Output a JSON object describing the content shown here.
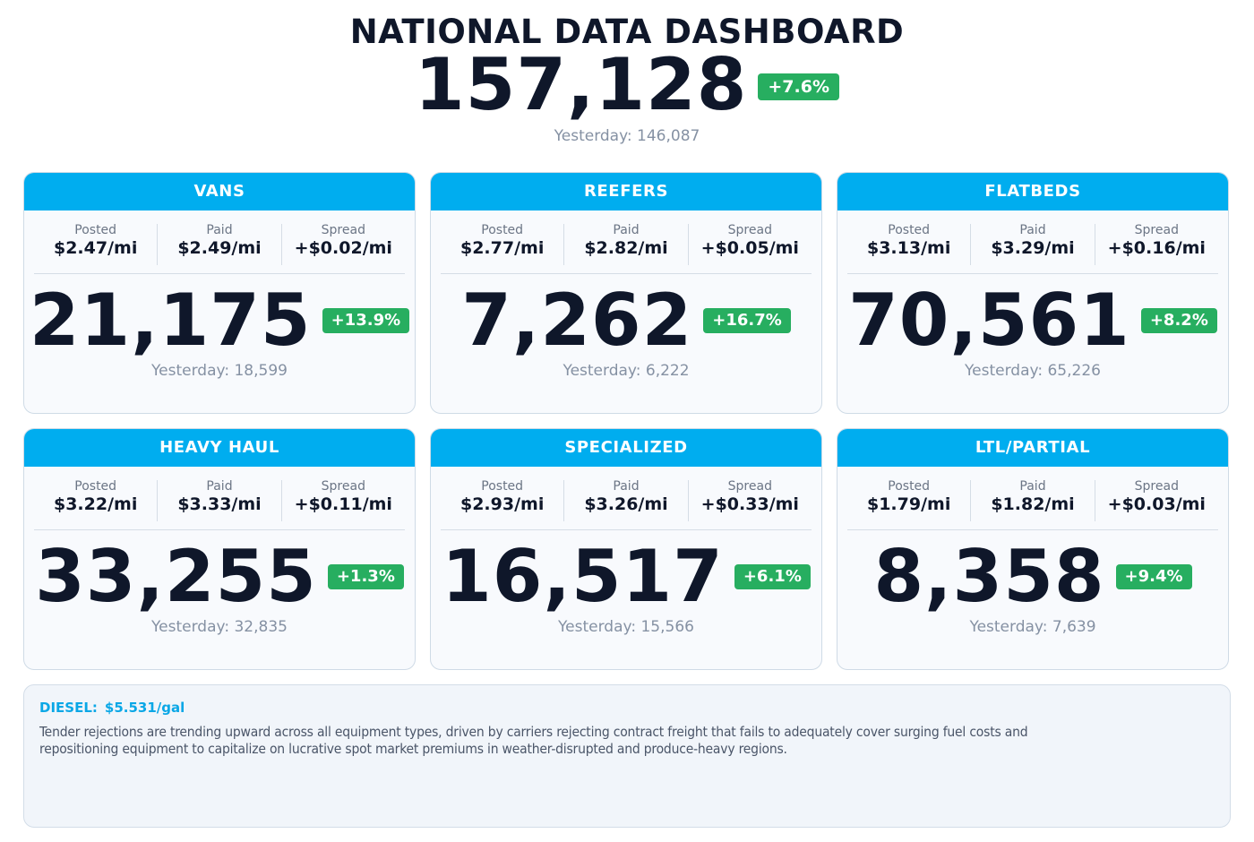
{
  "header": {
    "title": "NATIONAL DATA DASHBOARD",
    "total": "157,128",
    "change": "+7.6%",
    "yesterday": "Yesterday: 146,087"
  },
  "labels": {
    "posted": "Posted",
    "paid": "Paid",
    "spread": "Spread"
  },
  "cards": [
    {
      "title": "VANS",
      "posted": "$2.47/mi",
      "paid": "$2.49/mi",
      "spread": "+$0.02/mi",
      "value": "21,175",
      "change": "+13.9%",
      "yesterday": "Yesterday: 18,599"
    },
    {
      "title": "REEFERS",
      "posted": "$2.77/mi",
      "paid": "$2.82/mi",
      "spread": "+$0.05/mi",
      "value": "7,262",
      "change": "+16.7%",
      "yesterday": "Yesterday: 6,222"
    },
    {
      "title": "FLATBEDS",
      "posted": "$3.13/mi",
      "paid": "$3.29/mi",
      "spread": "+$0.16/mi",
      "value": "70,561",
      "change": "+8.2%",
      "yesterday": "Yesterday: 65,226"
    },
    {
      "title": "HEAVY HAUL",
      "posted": "$3.22/mi",
      "paid": "$3.33/mi",
      "spread": "+$0.11/mi",
      "value": "33,255",
      "change": "+1.3%",
      "yesterday": "Yesterday: 32,835"
    },
    {
      "title": "SPECIALIZED",
      "posted": "$2.93/mi",
      "paid": "$3.26/mi",
      "spread": "+$0.33/mi",
      "value": "16,517",
      "change": "+6.1%",
      "yesterday": "Yesterday: 15,566"
    },
    {
      "title": "LTL/PARTIAL",
      "posted": "$1.79/mi",
      "paid": "$1.82/mi",
      "spread": "+$0.03/mi",
      "value": "8,358",
      "change": "+9.4%",
      "yesterday": "Yesterday: 7,639"
    }
  ],
  "note": {
    "diesel_label": "DIESEL:",
    "diesel_value": "$5.531/gal",
    "commentary": "Tender rejections are trending upward across all equipment types, driven by carriers rejecting contract freight that fails to adequately cover surging fuel costs and repositioning equipment to capitalize on lucrative spot market premiums in weather-disrupted and produce-heavy regions."
  },
  "colors": {
    "header_band": "#00adef",
    "badge_positive": "#27ae60",
    "text_primary": "#0f172a",
    "text_muted": "#8591a3",
    "diesel_accent": "#0aa7e6"
  }
}
